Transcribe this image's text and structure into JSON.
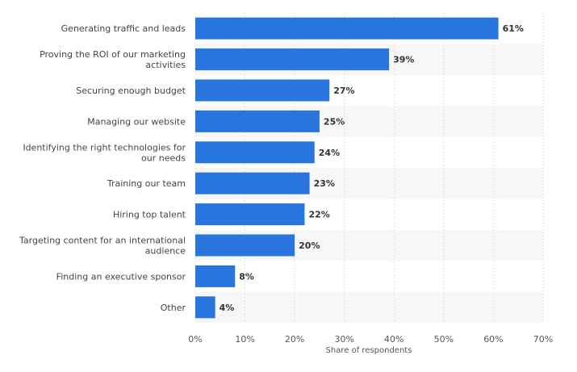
{
  "chart_data": {
    "type": "bar",
    "orientation": "horizontal",
    "categories": [
      "Generating traffic and leads",
      "Proving the ROI of our marketing activities",
      "Securing enough budget",
      "Managing our website",
      "Identifying the right technologies for our needs",
      "Training our team",
      "Hiring top talent",
      "Targeting content for an international audience",
      "Finding an executive sponsor",
      "Other"
    ],
    "category_lines": [
      [
        "Generating traffic and leads"
      ],
      [
        "Proving the ROI of our marketing",
        "activities"
      ],
      [
        "Securing enough budget"
      ],
      [
        "Managing our website"
      ],
      [
        "Identifying the right technologies for",
        "our needs"
      ],
      [
        "Training our team"
      ],
      [
        "Hiring top talent"
      ],
      [
        "Targeting content for an international",
        "audience"
      ],
      [
        "Finding an executive sponsor"
      ],
      [
        "Other"
      ]
    ],
    "values": [
      61,
      39,
      27,
      25,
      24,
      23,
      22,
      20,
      8,
      4
    ],
    "value_labels": [
      "61%",
      "39%",
      "27%",
      "25%",
      "24%",
      "23%",
      "22%",
      "20%",
      "8%",
      "4%"
    ],
    "xlim": [
      0,
      70
    ],
    "xticks": [
      0,
      10,
      20,
      30,
      40,
      50,
      60,
      70
    ],
    "xtick_labels": [
      "0%",
      "10%",
      "20%",
      "30%",
      "40%",
      "50%",
      "60%",
      "70%"
    ],
    "xlabel": "Share of respondents",
    "ylabel": "",
    "title": "",
    "grid": true,
    "bar_color": "#2876dd",
    "band_color": "#f7f7f7"
  }
}
